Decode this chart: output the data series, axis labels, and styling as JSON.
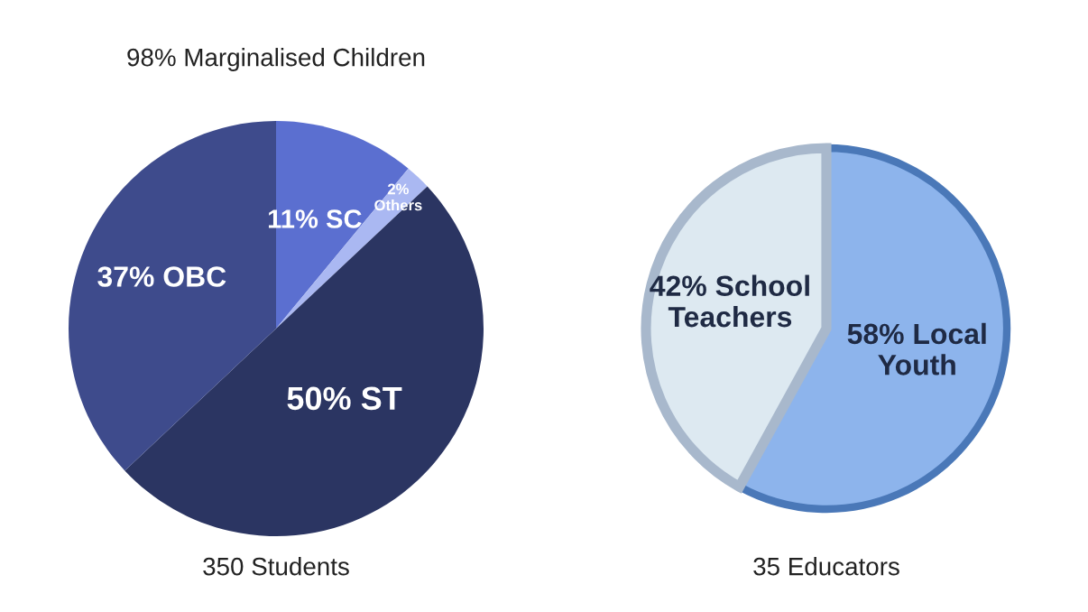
{
  "chart_data": [
    {
      "type": "pie",
      "title": "98% Marginalised Children",
      "xlabel": "350 Students",
      "categories": [
        null,
        null,
        null,
        null
      ],
      "values": [
        11,
        2,
        50,
        37
      ],
      "colors": [
        "#5b6fd0",
        "#aab8f2",
        "#2b3562",
        "#3e4b8c"
      ],
      "value_labels": [
        "11% SC",
        "2%\nOthers",
        "50% ST",
        "37% OBC"
      ]
    },
    {
      "type": "pie",
      "xlabel": "35 Educators",
      "categories": [
        null,
        null
      ],
      "values": [
        58,
        42
      ],
      "colors": [
        "#8db4ec",
        "#dde9f1"
      ],
      "value_labels": [
        "58% Local\nYouth",
        "42% School\nTeachers"
      ]
    }
  ]
}
